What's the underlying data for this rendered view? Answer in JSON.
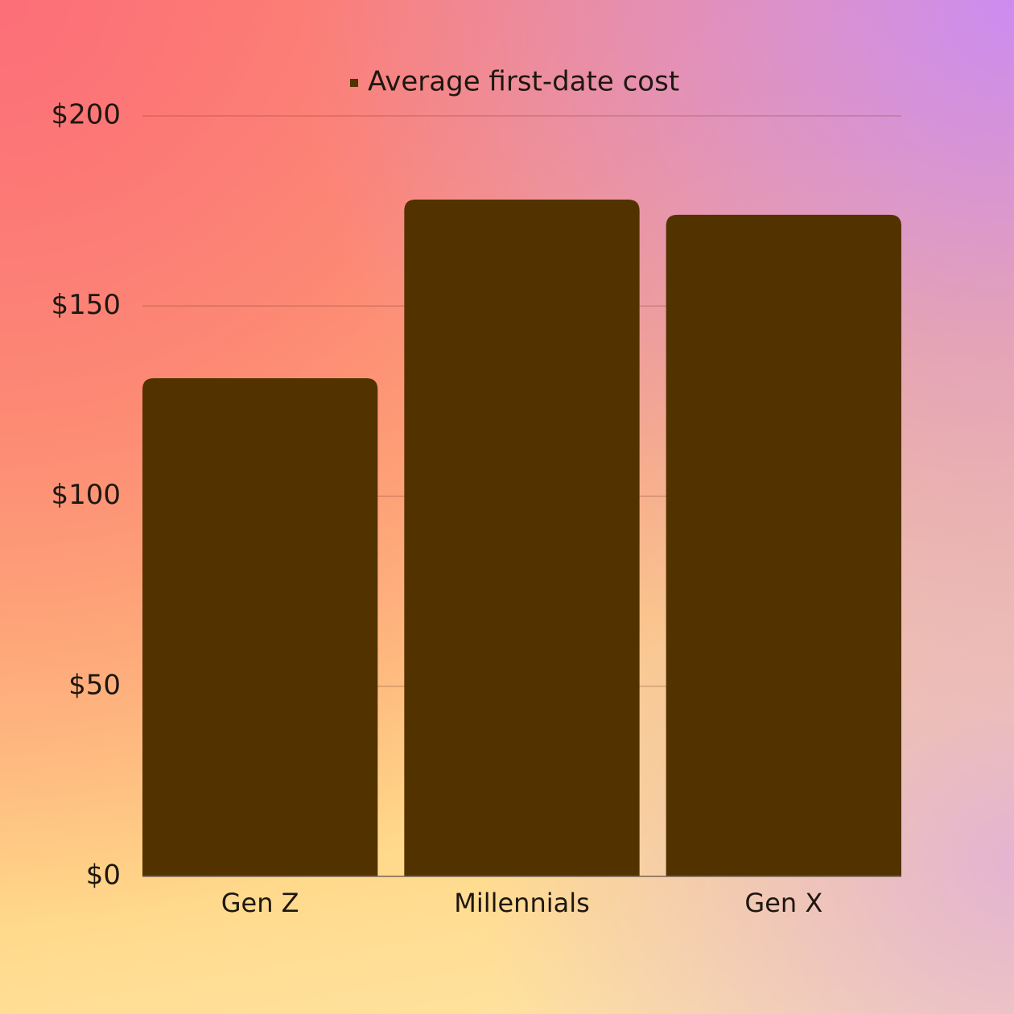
{
  "chart_data": {
    "type": "bar",
    "categories": [
      "Gen Z",
      "Millennials",
      "Gen X"
    ],
    "series": [
      {
        "name": "Average first-date cost",
        "color": "#523300",
        "values": [
          131,
          178,
          174
        ]
      }
    ],
    "ylim": [
      0,
      200
    ],
    "yticks": [
      {
        "value": 0,
        "label": "$0"
      },
      {
        "value": 50,
        "label": "$50"
      },
      {
        "value": 100,
        "label": "$100"
      },
      {
        "value": 150,
        "label": "$150"
      },
      {
        "value": 200,
        "label": "$200"
      }
    ],
    "grid": true,
    "legend": "top"
  }
}
